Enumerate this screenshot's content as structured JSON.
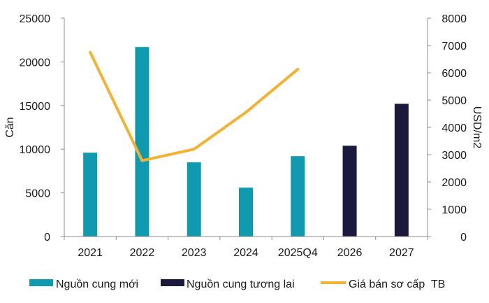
{
  "chart_data": {
    "type": "bar",
    "categories": [
      "2021",
      "2022",
      "2023",
      "2024",
      "2025Q4",
      "2026",
      "2027"
    ],
    "series": [
      {
        "name": "Nguồn cung mới",
        "kind": "bar",
        "axis": "left",
        "color": "#0F9AB0",
        "values": [
          9600,
          21700,
          8500,
          5600,
          9200,
          null,
          null
        ]
      },
      {
        "name": "Nguồn cung tương lai",
        "kind": "bar",
        "axis": "left",
        "color": "#1B1A3C",
        "values": [
          null,
          null,
          null,
          null,
          null,
          10400,
          15200
        ]
      },
      {
        "name": "Giá bán sơ cấp  TB",
        "kind": "line",
        "axis": "right",
        "color": "#F2B233",
        "values": [
          6750,
          2780,
          3200,
          4550,
          6130,
          null,
          null
        ]
      }
    ],
    "ylabel": "Căn",
    "y2label": "USD/m2",
    "ylim": [
      0,
      25000
    ],
    "y2lim": [
      0,
      8000
    ],
    "yticks": [
      "0",
      "5000",
      "10000",
      "15000",
      "20000",
      "25000"
    ],
    "y2ticks": [
      "0",
      "1000",
      "2000",
      "3000",
      "4000",
      "5000",
      "6000",
      "7000",
      "8000"
    ],
    "grid": false,
    "legend_position": "bottom"
  }
}
